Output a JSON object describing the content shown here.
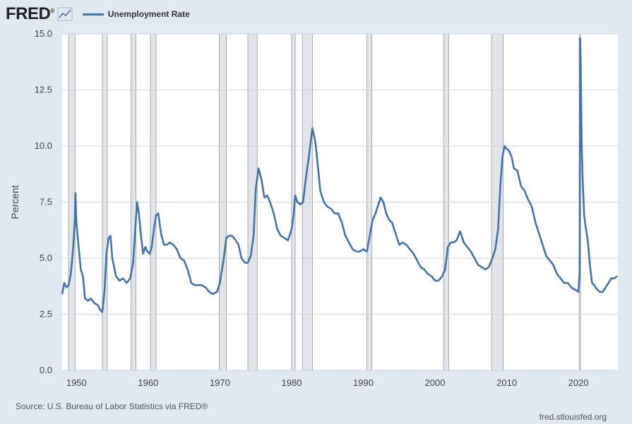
{
  "header": {
    "logo_text": "FRED",
    "logo_reg": "®",
    "logo_icon": "line-chart-icon"
  },
  "footer": {
    "source": "Source: U.S. Bureau of Labor Statistics via FRED®",
    "site": "fred.stlouisfed.org"
  },
  "colors": {
    "line": "#4572a7",
    "plot_bg": "#ffffff",
    "page_bg": "#e1e9f0",
    "recession": "#e1e5ea",
    "grid": "#cfd4d9"
  },
  "chart_data": {
    "type": "line",
    "title": "",
    "xlabel": "",
    "ylabel": "Percent",
    "xlim": [
      1948.0,
      2025.5
    ],
    "ylim": [
      0,
      15
    ],
    "yticks": [
      0.0,
      2.5,
      5.0,
      7.5,
      10.0,
      12.5,
      15.0
    ],
    "ytick_labels": [
      "0.0",
      "2.5",
      "5.0",
      "7.5",
      "10.0",
      "12.5",
      "15.0"
    ],
    "xticks": [
      1950,
      1960,
      1970,
      1980,
      1990,
      2000,
      2010,
      2020
    ],
    "xtick_labels": [
      "1950",
      "1960",
      "1970",
      "1980",
      "1990",
      "2000",
      "2010",
      "2020"
    ],
    "grid": "horizontal",
    "legend": "top-left",
    "recessions": [
      [
        1948.9,
        1949.8
      ],
      [
        1953.6,
        1954.3
      ],
      [
        1957.6,
        1958.3
      ],
      [
        1960.3,
        1961.1
      ],
      [
        1969.9,
        1970.9
      ],
      [
        1973.9,
        1975.2
      ],
      [
        1980.0,
        1980.5
      ],
      [
        1981.5,
        1982.9
      ],
      [
        1990.5,
        1991.2
      ],
      [
        2001.2,
        2001.9
      ],
      [
        2007.9,
        2009.5
      ],
      [
        2020.1,
        2020.3
      ]
    ],
    "series": [
      {
        "name": "Unemployment Rate",
        "x": [
          1948.0,
          1948.3,
          1948.6,
          1948.9,
          1949.2,
          1949.5,
          1949.75,
          1949.85,
          1950.0,
          1950.3,
          1950.6,
          1950.9,
          1951.2,
          1951.6,
          1952.0,
          1952.5,
          1953.0,
          1953.3,
          1953.6,
          1953.9,
          1954.2,
          1954.5,
          1954.75,
          1955.0,
          1955.5,
          1956.0,
          1956.5,
          1957.0,
          1957.5,
          1957.9,
          1958.2,
          1958.45,
          1958.7,
          1959.0,
          1959.3,
          1959.6,
          1959.9,
          1960.2,
          1960.5,
          1960.8,
          1961.1,
          1961.4,
          1961.8,
          1962.2,
          1962.6,
          1963.0,
          1963.5,
          1964.0,
          1964.5,
          1965.0,
          1965.5,
          1966.0,
          1966.5,
          1967.0,
          1967.5,
          1968.0,
          1968.5,
          1969.0,
          1969.6,
          1970.0,
          1970.5,
          1970.9,
          1971.3,
          1971.7,
          1972.2,
          1972.6,
          1973.0,
          1973.5,
          1973.9,
          1974.3,
          1974.7,
          1975.0,
          1975.4,
          1975.8,
          1976.2,
          1976.6,
          1977.0,
          1977.5,
          1978.0,
          1978.5,
          1979.0,
          1979.5,
          1980.0,
          1980.3,
          1980.5,
          1980.8,
          1981.2,
          1981.6,
          1982.0,
          1982.4,
          1982.9,
          1983.3,
          1983.7,
          1984.0,
          1984.5,
          1985.0,
          1985.5,
          1986.0,
          1986.5,
          1987.0,
          1987.5,
          1988.0,
          1988.5,
          1989.0,
          1989.5,
          1990.0,
          1990.5,
          1990.9,
          1991.3,
          1991.7,
          1992.0,
          1992.4,
          1992.8,
          1993.2,
          1993.6,
          1994.0,
          1994.5,
          1995.0,
          1995.5,
          1996.0,
          1996.5,
          1997.0,
          1997.5,
          1998.0,
          1998.5,
          1999.0,
          1999.5,
          2000.0,
          2000.5,
          2001.0,
          2001.4,
          2001.8,
          2002.2,
          2002.6,
          2003.0,
          2003.5,
          2004.0,
          2004.5,
          2005.0,
          2005.5,
          2006.0,
          2006.5,
          2007.0,
          2007.5,
          2008.0,
          2008.4,
          2008.8,
          2009.1,
          2009.4,
          2009.7,
          2009.9,
          2010.3,
          2010.7,
          2011.0,
          2011.5,
          2012.0,
          2012.5,
          2013.0,
          2013.5,
          2014.0,
          2014.5,
          2015.0,
          2015.5,
          2016.0,
          2016.5,
          2017.0,
          2017.5,
          2018.0,
          2018.5,
          2019.0,
          2019.5,
          2020.0,
          2020.17,
          2020.25,
          2020.33,
          2020.45,
          2020.6,
          2020.8,
          2021.0,
          2021.3,
          2021.6,
          2021.9,
          2022.2,
          2022.6,
          2023.0,
          2023.4,
          2023.8,
          2024.2,
          2024.6,
          2025.0,
          2025.4
        ],
        "values": [
          3.4,
          3.9,
          3.7,
          3.8,
          4.3,
          5.3,
          6.6,
          7.9,
          6.5,
          5.5,
          4.5,
          4.2,
          3.2,
          3.1,
          3.2,
          3.0,
          2.9,
          2.7,
          2.6,
          3.5,
          5.3,
          5.9,
          6.0,
          5.0,
          4.2,
          4.0,
          4.1,
          3.9,
          4.1,
          4.8,
          6.3,
          7.5,
          7.0,
          6.0,
          5.2,
          5.5,
          5.3,
          5.2,
          5.5,
          6.3,
          6.9,
          7.0,
          6.1,
          5.6,
          5.6,
          5.7,
          5.6,
          5.4,
          5.0,
          4.9,
          4.5,
          3.9,
          3.8,
          3.8,
          3.8,
          3.7,
          3.5,
          3.4,
          3.5,
          3.9,
          4.9,
          5.9,
          6.0,
          6.0,
          5.8,
          5.6,
          5.0,
          4.8,
          4.8,
          5.1,
          6.0,
          8.1,
          9.0,
          8.5,
          7.7,
          7.8,
          7.5,
          7.0,
          6.3,
          6.0,
          5.9,
          5.8,
          6.3,
          7.0,
          7.8,
          7.5,
          7.4,
          7.5,
          8.6,
          9.5,
          10.8,
          10.2,
          9.0,
          8.0,
          7.5,
          7.3,
          7.2,
          7.0,
          7.0,
          6.6,
          6.0,
          5.7,
          5.4,
          5.3,
          5.3,
          5.4,
          5.3,
          6.0,
          6.7,
          7.0,
          7.3,
          7.7,
          7.5,
          7.0,
          6.7,
          6.6,
          6.1,
          5.6,
          5.7,
          5.6,
          5.4,
          5.2,
          4.9,
          4.6,
          4.5,
          4.3,
          4.2,
          4.0,
          4.0,
          4.2,
          4.5,
          5.5,
          5.7,
          5.7,
          5.8,
          6.2,
          5.7,
          5.5,
          5.3,
          5.0,
          4.7,
          4.6,
          4.5,
          4.6,
          5.0,
          5.4,
          6.3,
          8.2,
          9.5,
          10.0,
          9.9,
          9.8,
          9.5,
          9.0,
          8.9,
          8.2,
          8.0,
          7.6,
          7.3,
          6.6,
          6.1,
          5.6,
          5.1,
          4.9,
          4.7,
          4.3,
          4.1,
          3.9,
          3.9,
          3.7,
          3.6,
          3.5,
          4.4,
          14.8,
          13.3,
          10.2,
          8.4,
          6.9,
          6.4,
          5.8,
          4.7,
          3.9,
          3.8,
          3.6,
          3.5,
          3.5,
          3.7,
          3.9,
          4.1,
          4.1,
          4.2
        ]
      }
    ]
  }
}
